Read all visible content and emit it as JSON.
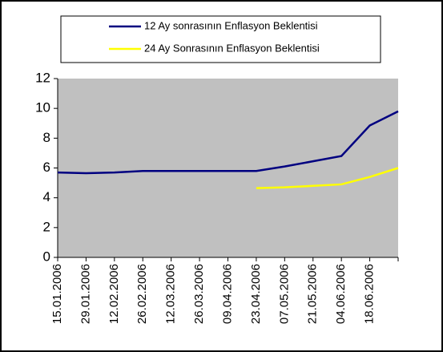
{
  "chart_data": {
    "type": "line",
    "categories": [
      "15.01.2006",
      "29.01.2006",
      "12.02.2006",
      "26.02.2006",
      "12.03.2006",
      "26.03.2006",
      "09.04.2006",
      "23.04.2006",
      "07.05.2006",
      "21.05.2006",
      "04.06.2006",
      "18.06.2006",
      null
    ],
    "series": [
      {
        "name": "12 Ay sonrasının Enflasyon Beklentisi",
        "color": "#000080",
        "values": [
          5.7,
          5.65,
          5.7,
          5.8,
          5.8,
          5.8,
          5.8,
          5.8,
          6.1,
          6.45,
          6.8,
          8.85,
          9.8
        ]
      },
      {
        "name": "24 Ay Sonrasının Enflasyon Beklentisi",
        "color": "#ffff00",
        "values": [
          null,
          null,
          null,
          null,
          null,
          null,
          null,
          4.65,
          4.7,
          4.8,
          4.9,
          5.4,
          6.0
        ]
      }
    ],
    "ylim": [
      0,
      12
    ],
    "yticks": [
      0,
      2,
      4,
      6,
      8,
      10,
      12
    ],
    "legend": "top"
  }
}
